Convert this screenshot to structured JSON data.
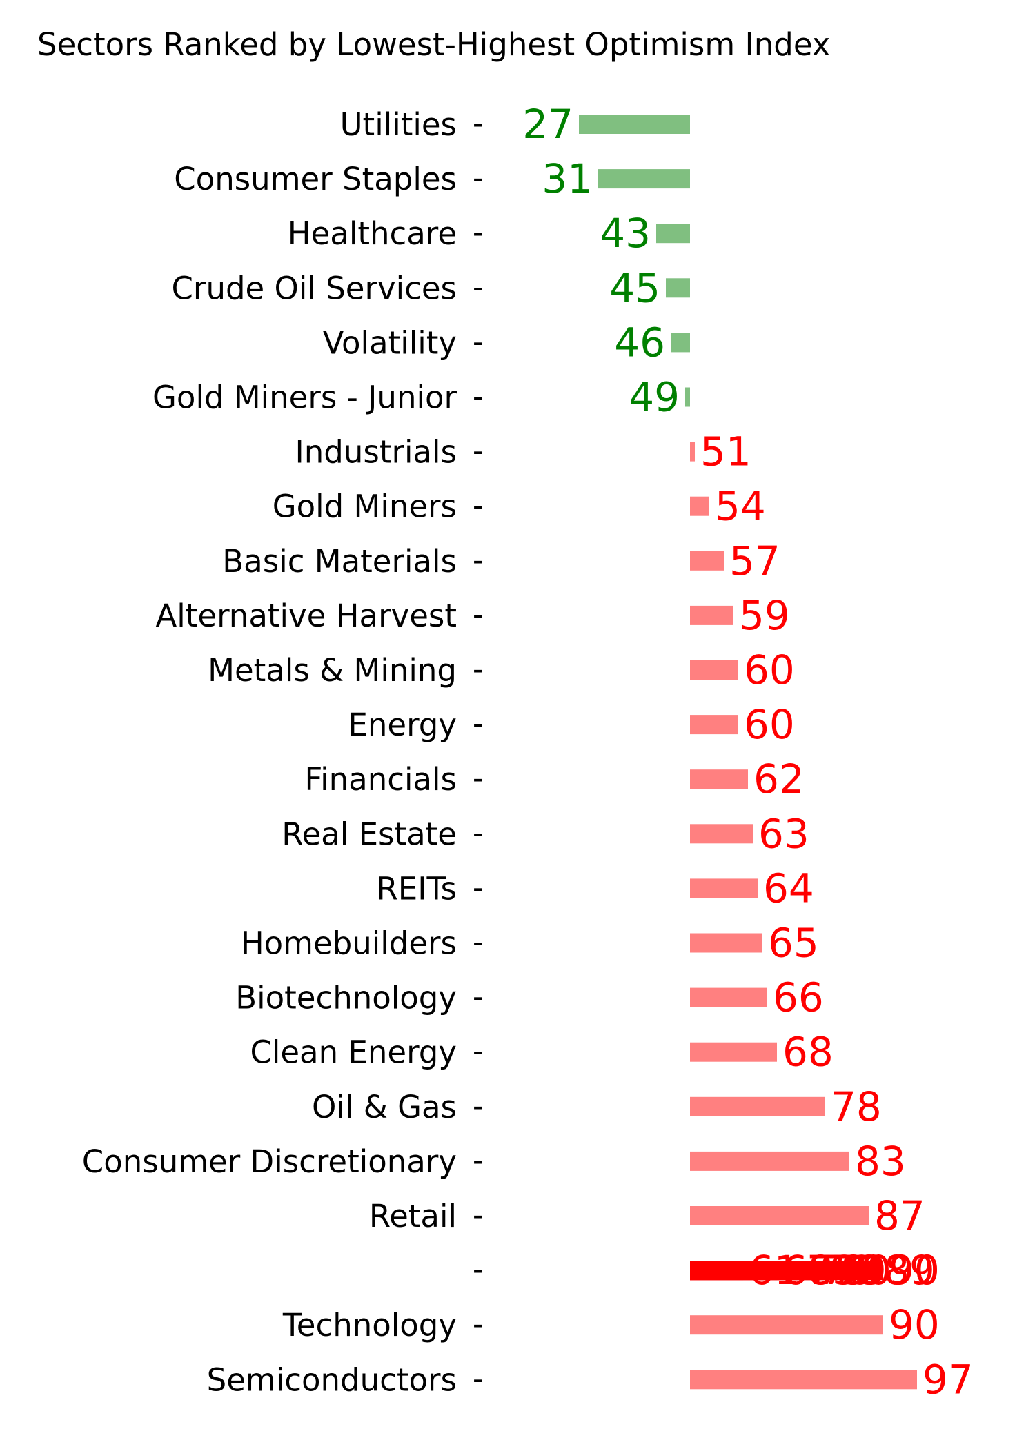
{
  "chart_data": {
    "type": "bar",
    "orientation": "horizontal",
    "title": "Sectors Ranked by Lowest-Highest Optimism Index",
    "xlabel": "",
    "ylabel": "",
    "baseline": 50,
    "grid": false,
    "legend": "none",
    "colors": {
      "below_baseline_bar": "#80bf80",
      "below_baseline_text": "#008000",
      "above_baseline_bar": "#ff8080",
      "above_baseline_text": "#ff0000",
      "overlay_bar": "#ff0000",
      "overlay_text": "#ff0000"
    },
    "categories": [
      "Utilities",
      "Consumer Staples",
      "Healthcare",
      "Crude Oil Services",
      "Volatility",
      "Gold Miners - Junior",
      "Industrials",
      "Gold Miners",
      "Basic Materials",
      "Alternative Harvest",
      "Metals & Mining",
      "Energy",
      "Financials",
      "Real Estate",
      "REITs",
      "Homebuilders",
      "Biotechnology",
      "Clean Energy",
      "Oil & Gas",
      "Consumer Discretionary",
      "Retail",
      "",
      "Technology",
      "Semiconductors"
    ],
    "values": [
      27,
      31,
      43,
      45,
      46,
      49,
      51,
      54,
      57,
      59,
      60,
      60,
      62,
      63,
      64,
      65,
      66,
      68,
      78,
      83,
      87,
      90,
      90,
      97
    ],
    "overlapping_row": {
      "row_index": 21,
      "labels": [
        "61",
        "68",
        "73",
        "75",
        "76",
        "78",
        "79",
        "80",
        "89",
        "90"
      ]
    }
  }
}
